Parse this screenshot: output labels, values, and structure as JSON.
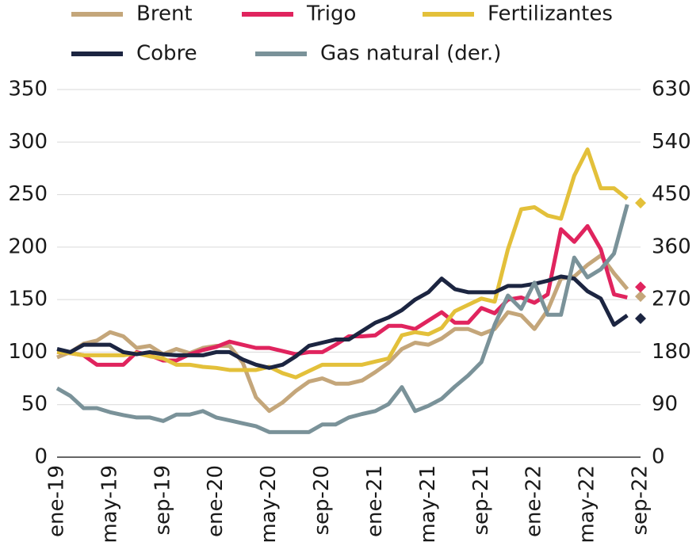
{
  "chart_data": {
    "type": "line",
    "categories": [
      "ene-19",
      null,
      null,
      null,
      "may-19",
      null,
      null,
      null,
      "sep-19",
      null,
      null,
      null,
      "ene-20",
      null,
      null,
      null,
      "may-20",
      null,
      null,
      null,
      "sep-20",
      null,
      null,
      null,
      "ene-21",
      null,
      null,
      null,
      "may-21",
      null,
      null,
      null,
      "sep-21",
      null,
      null,
      null,
      "ene-22",
      null,
      null,
      null,
      "may-22",
      null,
      null,
      null,
      "sep-22"
    ],
    "ylim": [
      0,
      350
    ],
    "yticks": [
      0,
      50,
      100,
      150,
      200,
      250,
      300,
      350
    ],
    "y2lim": [
      0,
      630
    ],
    "y2ticks": [
      0,
      90,
      180,
      270,
      360,
      450,
      540,
      630
    ],
    "grid": true,
    "end_marker": "diamond",
    "series": [
      {
        "name": "Brent",
        "color": "#c4a67a",
        "values": [
          95,
          100,
          108,
          111,
          119,
          115,
          104,
          106,
          98,
          103,
          99,
          104,
          106,
          106,
          90,
          57,
          44,
          52,
          63,
          72,
          75,
          70,
          70,
          73,
          81,
          90,
          103,
          109,
          107,
          113,
          122,
          122,
          117,
          122,
          138,
          135,
          122,
          140,
          170,
          172,
          183,
          192,
          175,
          160,
          153
        ]
      },
      {
        "name": "Trigo",
        "color": "#e0245e",
        "values": [
          100,
          99,
          97,
          88,
          88,
          88,
          100,
          97,
          92,
          92,
          98,
          102,
          105,
          110,
          107,
          104,
          104,
          101,
          98,
          100,
          100,
          107,
          115,
          115,
          116,
          125,
          125,
          122,
          130,
          138,
          128,
          128,
          142,
          137,
          150,
          152,
          147,
          155,
          217,
          205,
          220,
          198,
          155,
          152,
          162
        ]
      },
      {
        "name": "Fertilizantes",
        "color": "#e3c03a",
        "values": [
          100,
          99,
          97,
          97,
          97,
          97,
          99,
          96,
          94,
          88,
          88,
          86,
          85,
          83,
          83,
          83,
          86,
          80,
          76,
          82,
          88,
          88,
          88,
          88,
          91,
          94,
          116,
          119,
          117,
          123,
          139,
          145,
          151,
          148,
          198,
          236,
          238,
          230,
          227,
          268,
          293,
          256,
          256,
          246,
          242
        ]
      },
      {
        "name": "Cobre",
        "color": "#1c2541",
        "values": [
          103,
          100,
          107,
          107,
          107,
          100,
          98,
          100,
          98,
          97,
          97,
          97,
          100,
          100,
          93,
          88,
          85,
          88,
          96,
          106,
          109,
          112,
          112,
          120,
          128,
          133,
          140,
          150,
          157,
          170,
          160,
          157,
          157,
          157,
          163,
          163,
          165,
          168,
          172,
          170,
          158,
          151,
          126,
          135,
          132
        ]
      },
      {
        "name": "Gas natural (der.)",
        "color": "#7a9299",
        "axis": "y2",
        "values": [
          118,
          105,
          84,
          84,
          77,
          72,
          68,
          68,
          62,
          73,
          73,
          79,
          68,
          63,
          58,
          53,
          43,
          43,
          43,
          43,
          56,
          56,
          68,
          74,
          79,
          91,
          120,
          79,
          88,
          100,
          121,
          140,
          163,
          227,
          277,
          254,
          299,
          244,
          244,
          342,
          308,
          322,
          349,
          433,
          null
        ]
      }
    ]
  }
}
